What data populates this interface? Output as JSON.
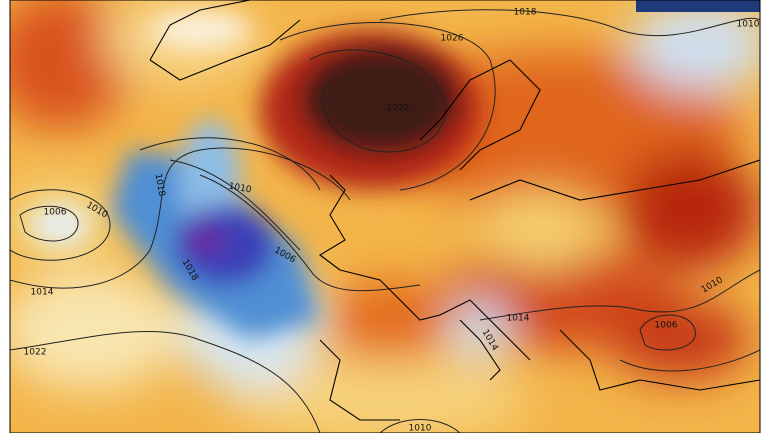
{
  "map": {
    "isobar_labels": [
      "1018",
      "1010",
      "1022",
      "1018",
      "1010",
      "1006",
      "1010",
      "1006",
      "1018",
      "1014",
      "1022",
      "1014",
      "1010",
      "1006",
      "1014",
      "1010",
      "1026"
    ]
  }
}
